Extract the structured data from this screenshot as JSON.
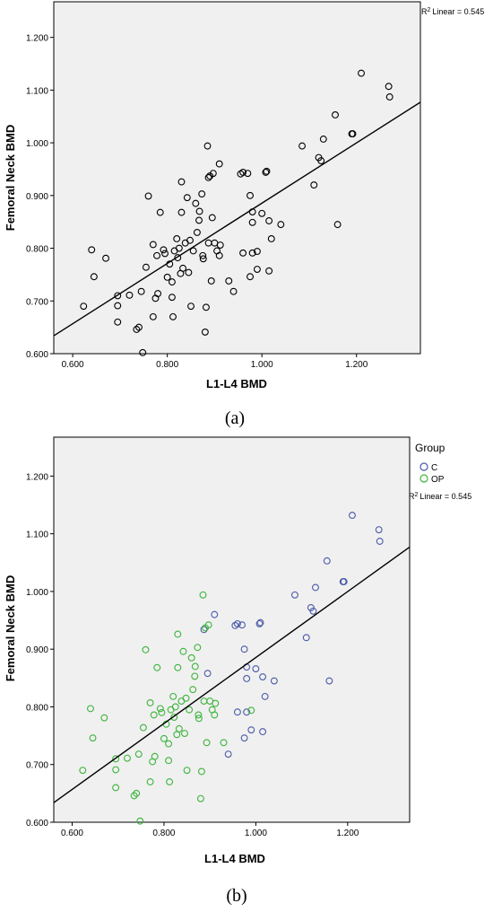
{
  "chart_data": [
    {
      "panel": "(a)",
      "type": "scatter",
      "xlabel": "L1-L4 BMD",
      "ylabel": "Femoral Neck BMD",
      "xlim": [
        0.56,
        1.335
      ],
      "ylim": [
        0.6,
        1.2675
      ],
      "xticks": [
        "0.600",
        "0.800",
        "1.000",
        "1.200"
      ],
      "yticks": [
        "0.600",
        "0.700",
        "0.800",
        "0.900",
        "1.000",
        "1.100",
        "1.200"
      ],
      "r2_label": "Linear = 0.545",
      "fit_line": {
        "x": [
          0.56,
          1.335
        ],
        "y": [
          0.634,
          1.077
        ]
      },
      "marker_color": "#000000",
      "series": [
        {
          "points": []
        }
      ]
    },
    {
      "panel": "(b)",
      "type": "scatter",
      "xlabel": "L1-L4 BMD",
      "ylabel": "Femoral Neck BMD",
      "xlim": [
        0.56,
        1.335
      ],
      "ylim": [
        0.6,
        1.2675
      ],
      "xticks": [
        "0.600",
        "0.800",
        "1.000",
        "1.200"
      ],
      "yticks": [
        "0.600",
        "0.700",
        "0.800",
        "0.900",
        "1.000",
        "1.100",
        "1.200"
      ],
      "r2_label": "Linear = 0.545",
      "legend_title": "Group",
      "legend_position": "right",
      "fit_line": {
        "x": [
          0.56,
          1.335
        ],
        "y": [
          0.634,
          1.077
        ]
      },
      "series": [
        {
          "name": "C",
          "color": "#4a5aa8",
          "points": []
        },
        {
          "name": "OP",
          "color": "#3cb43c",
          "points": []
        }
      ]
    }
  ],
  "points_c": [
    [
      0.887,
      0.934
    ],
    [
      0.91,
      0.96
    ],
    [
      0.955,
      0.941
    ],
    [
      0.96,
      0.944
    ],
    [
      0.97,
      0.942
    ],
    [
      1.008,
      0.944
    ],
    [
      1.01,
      0.946
    ],
    [
      0.975,
      0.9
    ],
    [
      0.895,
      0.858
    ],
    [
      0.98,
      0.869
    ],
    [
      0.98,
      0.849
    ],
    [
      1.0,
      0.866
    ],
    [
      1.015,
      0.852
    ],
    [
      1.04,
      0.845
    ],
    [
      1.02,
      0.818
    ],
    [
      0.96,
      0.791
    ],
    [
      0.98,
      0.791
    ],
    [
      0.99,
      0.76
    ],
    [
      1.015,
      0.757
    ],
    [
      0.975,
      0.746
    ],
    [
      0.94,
      0.718
    ],
    [
      1.085,
      0.994
    ],
    [
      1.11,
      0.92
    ],
    [
      1.12,
      0.972
    ],
    [
      1.125,
      0.966
    ],
    [
      1.13,
      1.007
    ],
    [
      1.155,
      1.053
    ],
    [
      1.16,
      0.845
    ],
    [
      1.19,
      1.017
    ],
    [
      1.192,
      1.017
    ],
    [
      1.21,
      1.132
    ],
    [
      1.268,
      1.107
    ],
    [
      1.27,
      1.087
    ]
  ],
  "points_op": [
    [
      0.623,
      0.69
    ],
    [
      0.64,
      0.797
    ],
    [
      0.645,
      0.746
    ],
    [
      0.67,
      0.781
    ],
    [
      0.695,
      0.71
    ],
    [
      0.695,
      0.691
    ],
    [
      0.695,
      0.66
    ],
    [
      0.72,
      0.711
    ],
    [
      0.735,
      0.646
    ],
    [
      0.74,
      0.65
    ],
    [
      0.745,
      0.718
    ],
    [
      0.748,
      0.602
    ],
    [
      0.755,
      0.764
    ],
    [
      0.76,
      0.899
    ],
    [
      0.77,
      0.807
    ],
    [
      0.77,
      0.67
    ],
    [
      0.775,
      0.705
    ],
    [
      0.778,
      0.786
    ],
    [
      0.78,
      0.714
    ],
    [
      0.785,
      0.868
    ],
    [
      0.792,
      0.797
    ],
    [
      0.795,
      0.79
    ],
    [
      0.8,
      0.745
    ],
    [
      0.805,
      0.77
    ],
    [
      0.81,
      0.736
    ],
    [
      0.81,
      0.707
    ],
    [
      0.812,
      0.67
    ],
    [
      0.815,
      0.795
    ],
    [
      0.82,
      0.818
    ],
    [
      0.822,
      0.782
    ],
    [
      0.825,
      0.8
    ],
    [
      0.828,
      0.752
    ],
    [
      0.83,
      0.926
    ],
    [
      0.83,
      0.868
    ],
    [
      0.833,
      0.762
    ],
    [
      0.838,
      0.81
    ],
    [
      0.842,
      0.896
    ],
    [
      0.845,
      0.754
    ],
    [
      0.848,
      0.815
    ],
    [
      0.85,
      0.69
    ],
    [
      0.855,
      0.795
    ],
    [
      0.86,
      0.885
    ],
    [
      0.863,
      0.83
    ],
    [
      0.867,
      0.853
    ],
    [
      0.868,
      0.87
    ],
    [
      0.873,
      0.903
    ],
    [
      0.875,
      0.786
    ],
    [
      0.876,
      0.78
    ],
    [
      0.88,
      0.641
    ],
    [
      0.882,
      0.688
    ],
    [
      0.885,
      0.994
    ],
    [
      0.887,
      0.81
    ],
    [
      0.89,
      0.937
    ],
    [
      0.893,
      0.738
    ],
    [
      0.897,
      0.942
    ],
    [
      0.9,
      0.81
    ],
    [
      0.905,
      0.795
    ],
    [
      0.91,
      0.786
    ],
    [
      0.912,
      0.806
    ],
    [
      0.93,
      0.738
    ],
    [
      0.99,
      0.794
    ]
  ],
  "panel_labels": {
    "a": "(a)",
    "b": "(b)"
  },
  "legend": {
    "title": "Group",
    "c_label": "C",
    "op_label": "OP"
  },
  "r2": {
    "sup": "2",
    "prefix": "R"
  }
}
